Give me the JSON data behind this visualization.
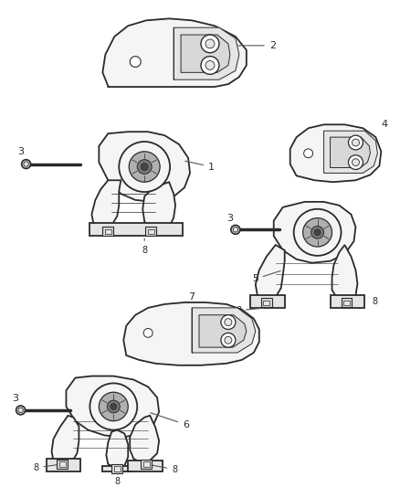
{
  "background_color": "#ffffff",
  "line_color": "#2a2a2a",
  "fig_width": 4.38,
  "fig_height": 5.33,
  "dpi": 100,
  "lw_main": 1.3,
  "lw_detail": 0.7,
  "fill_main": "#f5f5f5",
  "fill_dark": "#d8d8d8",
  "fill_mid": "#e5e5e5",
  "fill_rubber": "#b0b0b0",
  "fill_inner": "#787878",
  "fill_core": "#444444",
  "label_fs": 8,
  "label_color": "#222222"
}
